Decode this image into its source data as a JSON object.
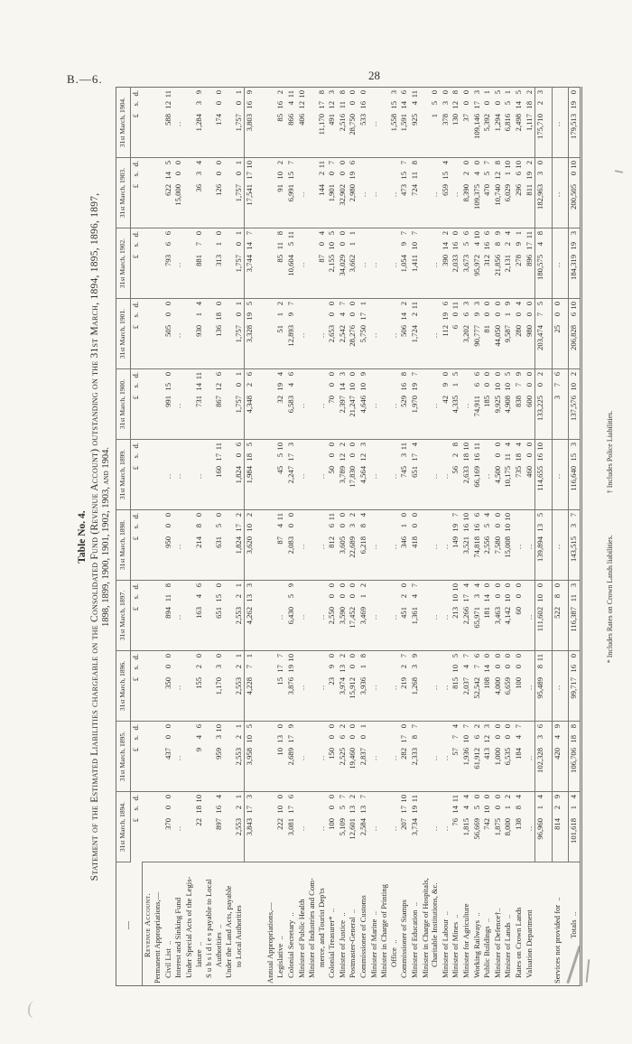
{
  "page": {
    "doc_ref": "B.—6.",
    "page_number": "28"
  },
  "title": {
    "table_no": "Table No. 4.",
    "line1": "Statement of the Estimated Liabilities chargeable on the Consolidated Fund (Revenue Account) outstanding on the 31st March, 1894, 1895, 1896, 1897,",
    "line2": "1898, 1899, 1900, 1901, 1902, 1903, and 1904."
  },
  "footnotes": [
    "* Includes Rates on Crown Lands liabilities.",
    "† Includes Police Liabilities."
  ],
  "annotations": {
    "pencil_marks": [
      "/1 (lower right of table)",
      "( (lower left, faint)"
    ]
  },
  "table": {
    "stub_header": "—",
    "currency_header": "£ s. d.",
    "col_headers": [
      "31st March, 1894.",
      "31st March, 1895.",
      "31st March, 1896.",
      "31st March, 1897.",
      "31st March, 1898.",
      "31st March, 1899.",
      "31st March, 1900.",
      "31st March, 1901.",
      "31st March, 1902.",
      "31st March, 1903.",
      "31st March, 1904."
    ],
    "rows": [
      {
        "kind": "head",
        "lines": [
          "Revenue Account."
        ]
      },
      {
        "kind": "subhead",
        "lines": [
          "Permanent Appropriations,—"
        ]
      },
      {
        "kind": "item",
        "lines": [
          "Civil List  .."
        ],
        "values": [
          "370 0 0",
          "437 0 0",
          "350 0 0",
          "894 11 8",
          "950 0 0",
          "..",
          "991 15 0",
          "505 0 0",
          "793 6 6",
          "622 14 5",
          "588 12 11"
        ]
      },
      {
        "kind": "item",
        "lines": [
          "Interest and Sinking Fund"
        ],
        "values": [
          "..",
          "..",
          "..",
          "..",
          "..",
          "..",
          "..",
          "..",
          "..",
          "15,000 0 0",
          ".."
        ]
      },
      {
        "kind": "item",
        "lines": [
          "Under Special Acts of the Legis-",
          "lature  .."
        ],
        "values": [
          "22 18 10",
          "9 4 6",
          "155 2 0",
          "163 4 6",
          "214 8 0",
          "..",
          "731 14 11",
          "930 1 4",
          "881 7 0",
          "36 3 4",
          "1,284 3 9"
        ]
      },
      {
        "kind": "item",
        "lines": [
          "S u b s i d i e s  payable  to  Local",
          "Authorities  .."
        ],
        "values": [
          "897 16 4",
          "959 3 10",
          "1,170 3 0",
          "651 15 0",
          "631 5 0",
          "160 17 11",
          "867 12 6",
          "136 18 0",
          "313 1 0",
          "126 0 0",
          "174 0 0"
        ]
      },
      {
        "kind": "item",
        "lines": [
          "Under the Land Acts, payable",
          "to Local Authorities"
        ],
        "values": [
          "2,553 2 1",
          "2,553 2 1",
          "2,553 2 1",
          "2,553 2 1",
          "1,824 17 2",
          "1,824 0 6",
          "1,757 0 1",
          "1,757 0 1",
          "1,757 0 1",
          "1,757 0 1",
          "1,757 0 1"
        ]
      },
      {
        "kind": "total",
        "values": [
          "3,843 17 3",
          "3,958 10 5",
          "4,228 7 1",
          "4,262 13 3",
          "3,620 10 2",
          "1,984 18 5",
          "4,348 2 6",
          "3,328 19 5",
          "3,744 14 7",
          "17,541 17 10",
          "3,803 16 9"
        ]
      },
      {
        "kind": "sp2"
      },
      {
        "kind": "subhead",
        "lines": [
          "Annual Appropriations,—"
        ]
      },
      {
        "kind": "item",
        "lines": [
          "Legislative  .."
        ],
        "values": [
          "222 10 0",
          "10 13 0",
          "15 17 7",
          "..",
          "87 4 11",
          "45 5 10",
          "32 19 4",
          "51 1 2",
          "85 11 8",
          "91 10 2",
          "85 16 2"
        ]
      },
      {
        "kind": "item",
        "lines": [
          "Colonial Secretary  .."
        ],
        "values": [
          "3,081 17 6",
          "2,689 17 9",
          "3,876 19 10",
          "6,430 5 9",
          "2,083 0 0",
          "2,247 17 3",
          "6,583 4 6",
          "12,893 9 7",
          "10,604 5 11",
          "6,991 15 7",
          "866 4 11"
        ]
      },
      {
        "kind": "item",
        "lines": [
          "Minister of Public Health"
        ],
        "values": [
          "..",
          "..",
          "..",
          "..",
          "..",
          "..",
          "..",
          "..",
          "..",
          "..",
          "406 12 10"
        ]
      },
      {
        "kind": "item",
        "lines": [
          "Minister of Industries and Com-",
          "merce, and Tourist Dep'ts"
        ],
        "values": [
          "..",
          "..",
          "..",
          "..",
          "..",
          "..",
          "..",
          "..",
          "87 0 4",
          "144 2 11",
          "11,170 17 8"
        ]
      },
      {
        "kind": "item",
        "lines": [
          "Colonial Treasurer*  .."
        ],
        "values": [
          "100 0 0",
          "150 0 0",
          "23 9 0",
          "2,550 0 0",
          "812 6 11",
          "50 0 0",
          "70 0 0",
          "2,653 0 0",
          "2,155 10 5",
          "1,901 0 7",
          "491 12 3"
        ]
      },
      {
        "kind": "item",
        "lines": [
          "Minister of Justice  .."
        ],
        "values": [
          "5,109 5 7",
          "2,525 6 2",
          "3,974 13 2",
          "3,590 0 0",
          "3,605 0 0",
          "3,789 12 2",
          "2,397 14 3",
          "2,542 4 7",
          "34,029 0 0",
          "32,902 0 0",
          "2,516 11 8"
        ]
      },
      {
        "kind": "item",
        "lines": [
          "Postmaster-General  .."
        ],
        "values": [
          "12,601 13 2",
          "19,460 0 0",
          "15,912 0 0",
          "17,452 0 0",
          "22,689 3 2",
          "17,830 0 0",
          "21,247 10 0",
          "28,276 0 0",
          "3,662 1 1",
          "2,980 19 6",
          "28,750 0 0"
        ]
      },
      {
        "kind": "item",
        "lines": [
          "Commissioner of Customs"
        ],
        "values": [
          "2,584 13 7",
          "2,837 0 1",
          "3,936 1 8",
          "3,469 1 2",
          "6,218 8 4",
          "4,564 12 3",
          "4,646 10 9",
          "5,750 17 1",
          "..",
          "..",
          "533 16 0"
        ]
      },
      {
        "kind": "item",
        "lines": [
          "Minister of Marine  .."
        ],
        "values": [
          "..",
          "..",
          "..",
          "..",
          "..",
          "..",
          "..",
          "..",
          "..",
          "..",
          ".."
        ]
      },
      {
        "kind": "item",
        "lines": [
          "Minister in Charge of Printing",
          "Office  .."
        ],
        "values": [
          "..",
          "..",
          "..",
          "..",
          "..",
          "..",
          "..",
          "..",
          "..",
          "..",
          "1,558 15 3"
        ]
      },
      {
        "kind": "item",
        "lines": [
          "Commissioner of Stamps"
        ],
        "values": [
          "207 17 10",
          "282 17 0",
          "219 2 7",
          "451 2 0",
          "346 1 0",
          "745 3 11",
          "529 16 8",
          "506 14 2",
          "1,054 9 7",
          "473 15 7",
          "1,591 14 6"
        ]
      },
      {
        "kind": "item",
        "lines": [
          "Minister of Education  .."
        ],
        "values": [
          "3,734 19 11",
          "2,333 8 7",
          "1,268 3 9",
          "1,361 4 7",
          "418 0 0",
          "651 17 4",
          "1,970 19 7",
          "1,724 2 11",
          "1,411 10 7",
          "724 11 8",
          "925 4 11"
        ]
      },
      {
        "kind": "item",
        "lines": [
          "Minister in Charge of Hospitals,",
          "Charitable Institutions, &c."
        ],
        "values": [
          "..",
          "..",
          "..",
          "..",
          "..",
          "..",
          "..",
          "..",
          "..",
          "..",
          "1 5 0"
        ]
      },
      {
        "kind": "item",
        "lines": [
          "Minister of Labour  .."
        ],
        "values": [
          "..",
          "..",
          "..",
          "..",
          "..",
          "..",
          "42 9 0",
          "112 19 6",
          "390 14 2",
          "659 15 4",
          "378 3 0"
        ]
      },
      {
        "kind": "item",
        "lines": [
          "Minister of Mines  .."
        ],
        "values": [
          "76 14 11",
          "57 7 4",
          "815 10 5",
          "213 10 10",
          "149 19 7",
          "56 2 8",
          "4,335 1 5",
          "6 0 11",
          "2,033 16 0",
          "..",
          "130 12 8"
        ]
      },
      {
        "kind": "item",
        "lines": [
          "Minister for Agriculture"
        ],
        "values": [
          "1,815 4 4",
          "1,936 10 7",
          "2,037 4 7",
          "2,266 17 4",
          "3,521 16 10",
          "2,633 18 10",
          "..",
          "3,202 6 3",
          "3,673 5 6",
          "8,390 2 0",
          "37 0 0"
        ]
      },
      {
        "kind": "item",
        "lines": [
          "Working Railways  .."
        ],
        "values": [
          "56,669 5 0",
          "61,912 6 2",
          "52,542 7 6",
          "65,971 3 4",
          "74,818 16 6",
          "66,169 16 11",
          "74,911 6 6",
          "90,777 9 3",
          "95,972 4 10",
          "109,375 4 0",
          "109,146 17 3"
        ]
      },
      {
        "kind": "item",
        "lines": [
          "Public Buildings  .."
        ],
        "values": [
          "742 10 0",
          "413 12 3",
          "108 14 0",
          "181 14 0",
          "2,556 5 4",
          "..",
          "185 0 0",
          "81 0 0",
          "312 16 6",
          "470 5 7",
          "5,392 0 1"
        ]
      },
      {
        "kind": "item",
        "lines": [
          "Minister of Defence†.."
        ],
        "values": [
          "1,875 0 0",
          "1,000 0 0",
          "4,000 0 0",
          "3,463 0 0",
          "7,580 0 0",
          "4,500 0 0",
          "9,925 10 0",
          "44,050 0 0",
          "21,856 8 9",
          "10,740 12 8",
          "1,294 0 5"
        ]
      },
      {
        "kind": "item",
        "lines": [
          "Minister of Lands  .."
        ],
        "values": [
          "8,000 1 2",
          "6,535 0 0",
          "6,659 0 0",
          "4,142 10 0",
          "15,008 10 10",
          "10,175 11 4",
          "4,908 10 5",
          "9,587 1 9",
          "2,131 2 4",
          "6,029 1 10",
          "6,816 5 1"
        ]
      },
      {
        "kind": "item",
        "lines": [
          "Rates on Crown Lands"
        ],
        "values": [
          "138 8 4",
          "184 4 7",
          "100 0 0",
          "60 0 0",
          "..",
          "735 18 4",
          "838 7 9",
          "280 0 4",
          "278 9 1",
          "296 6 10",
          "2,498 14 5"
        ]
      },
      {
        "kind": "item",
        "lines": [
          "Valuation Department"
        ],
        "values": [
          "..",
          "..",
          "..",
          "..",
          "..",
          "460 0 0",
          "600 0 0",
          "980 0 0",
          "896 17 11",
          "811 19 2",
          "1,117 18 2"
        ]
      },
      {
        "kind": "total",
        "values": [
          "96,960 1 4",
          "102,328 3 6",
          "95,489 8 11",
          "111,602 10 0",
          "139,894 13 5",
          "114,655 16 10",
          "133,225 0 2",
          "203,474 7 5",
          "180,575 4 8",
          "182,963 3 0",
          "175,710 2 3"
        ]
      },
      {
        "kind": "sp"
      },
      {
        "kind": "services",
        "lines": [
          "Services not provided for  .."
        ],
        "values": [
          "814 2 9",
          "420 4 9",
          "..",
          "522 8 0",
          "..",
          "..",
          "3 7 6",
          "25 0 0",
          "..",
          "..",
          ".."
        ]
      },
      {
        "kind": "sp"
      },
      {
        "kind": "grand",
        "lines": [
          "Totals  .."
        ],
        "values": [
          "101,618 1 4",
          "106,706 18 8",
          "99,717 16 0",
          "116,387 11 3",
          "143,515 3 7",
          "116,640 15 3",
          "137,576 10 2",
          "206,828 6 10",
          "184,319 19 3",
          "200,505 0 10",
          "179,513 19 0"
        ]
      }
    ]
  }
}
